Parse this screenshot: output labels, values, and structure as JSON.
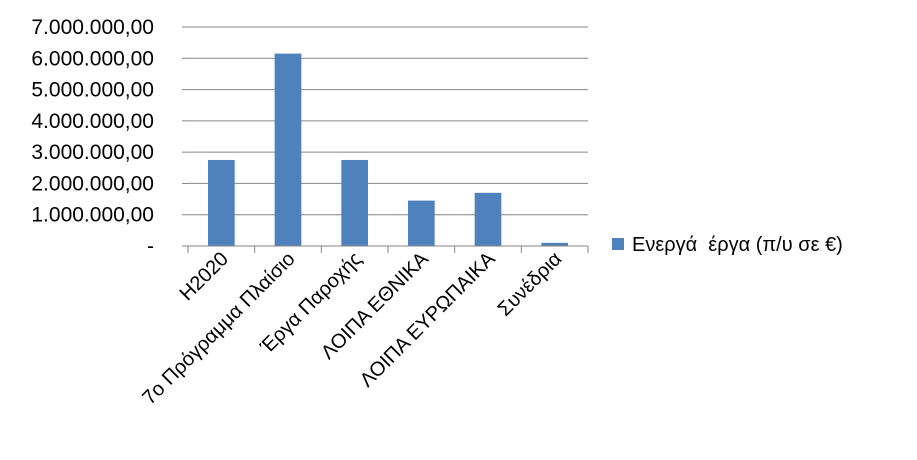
{
  "chart_data": {
    "type": "bar",
    "categories": [
      "H2020",
      "7ο Πρόγραμμα Πλαίσιο",
      "Έργα Παροχής",
      "ΛΟΙΠΑ ΕΘΝΙΚΑ",
      "ΛΟΙΠΑ ΕΥΡΩΠΑΙΚΑ",
      "Συνέδρια"
    ],
    "series": [
      {
        "name": "Ενεργά  έργα (π/υ σε €)",
        "values": [
          2750000,
          6150000,
          2750000,
          1450000,
          1700000,
          100000
        ]
      }
    ],
    "ytick_labels": [
      "-",
      "1.000.000,00",
      "2.000.000,00",
      "3.000.000,00",
      "4.000.000,00",
      "5.000.000,00",
      "6.000.000,00",
      "7.000.000,00"
    ],
    "ylim": [
      0,
      7000000
    ],
    "grid": true,
    "legend_position": "right",
    "colors": {
      "bar": "#4F81BD",
      "grid": "#868686",
      "axis": "#868686"
    }
  }
}
